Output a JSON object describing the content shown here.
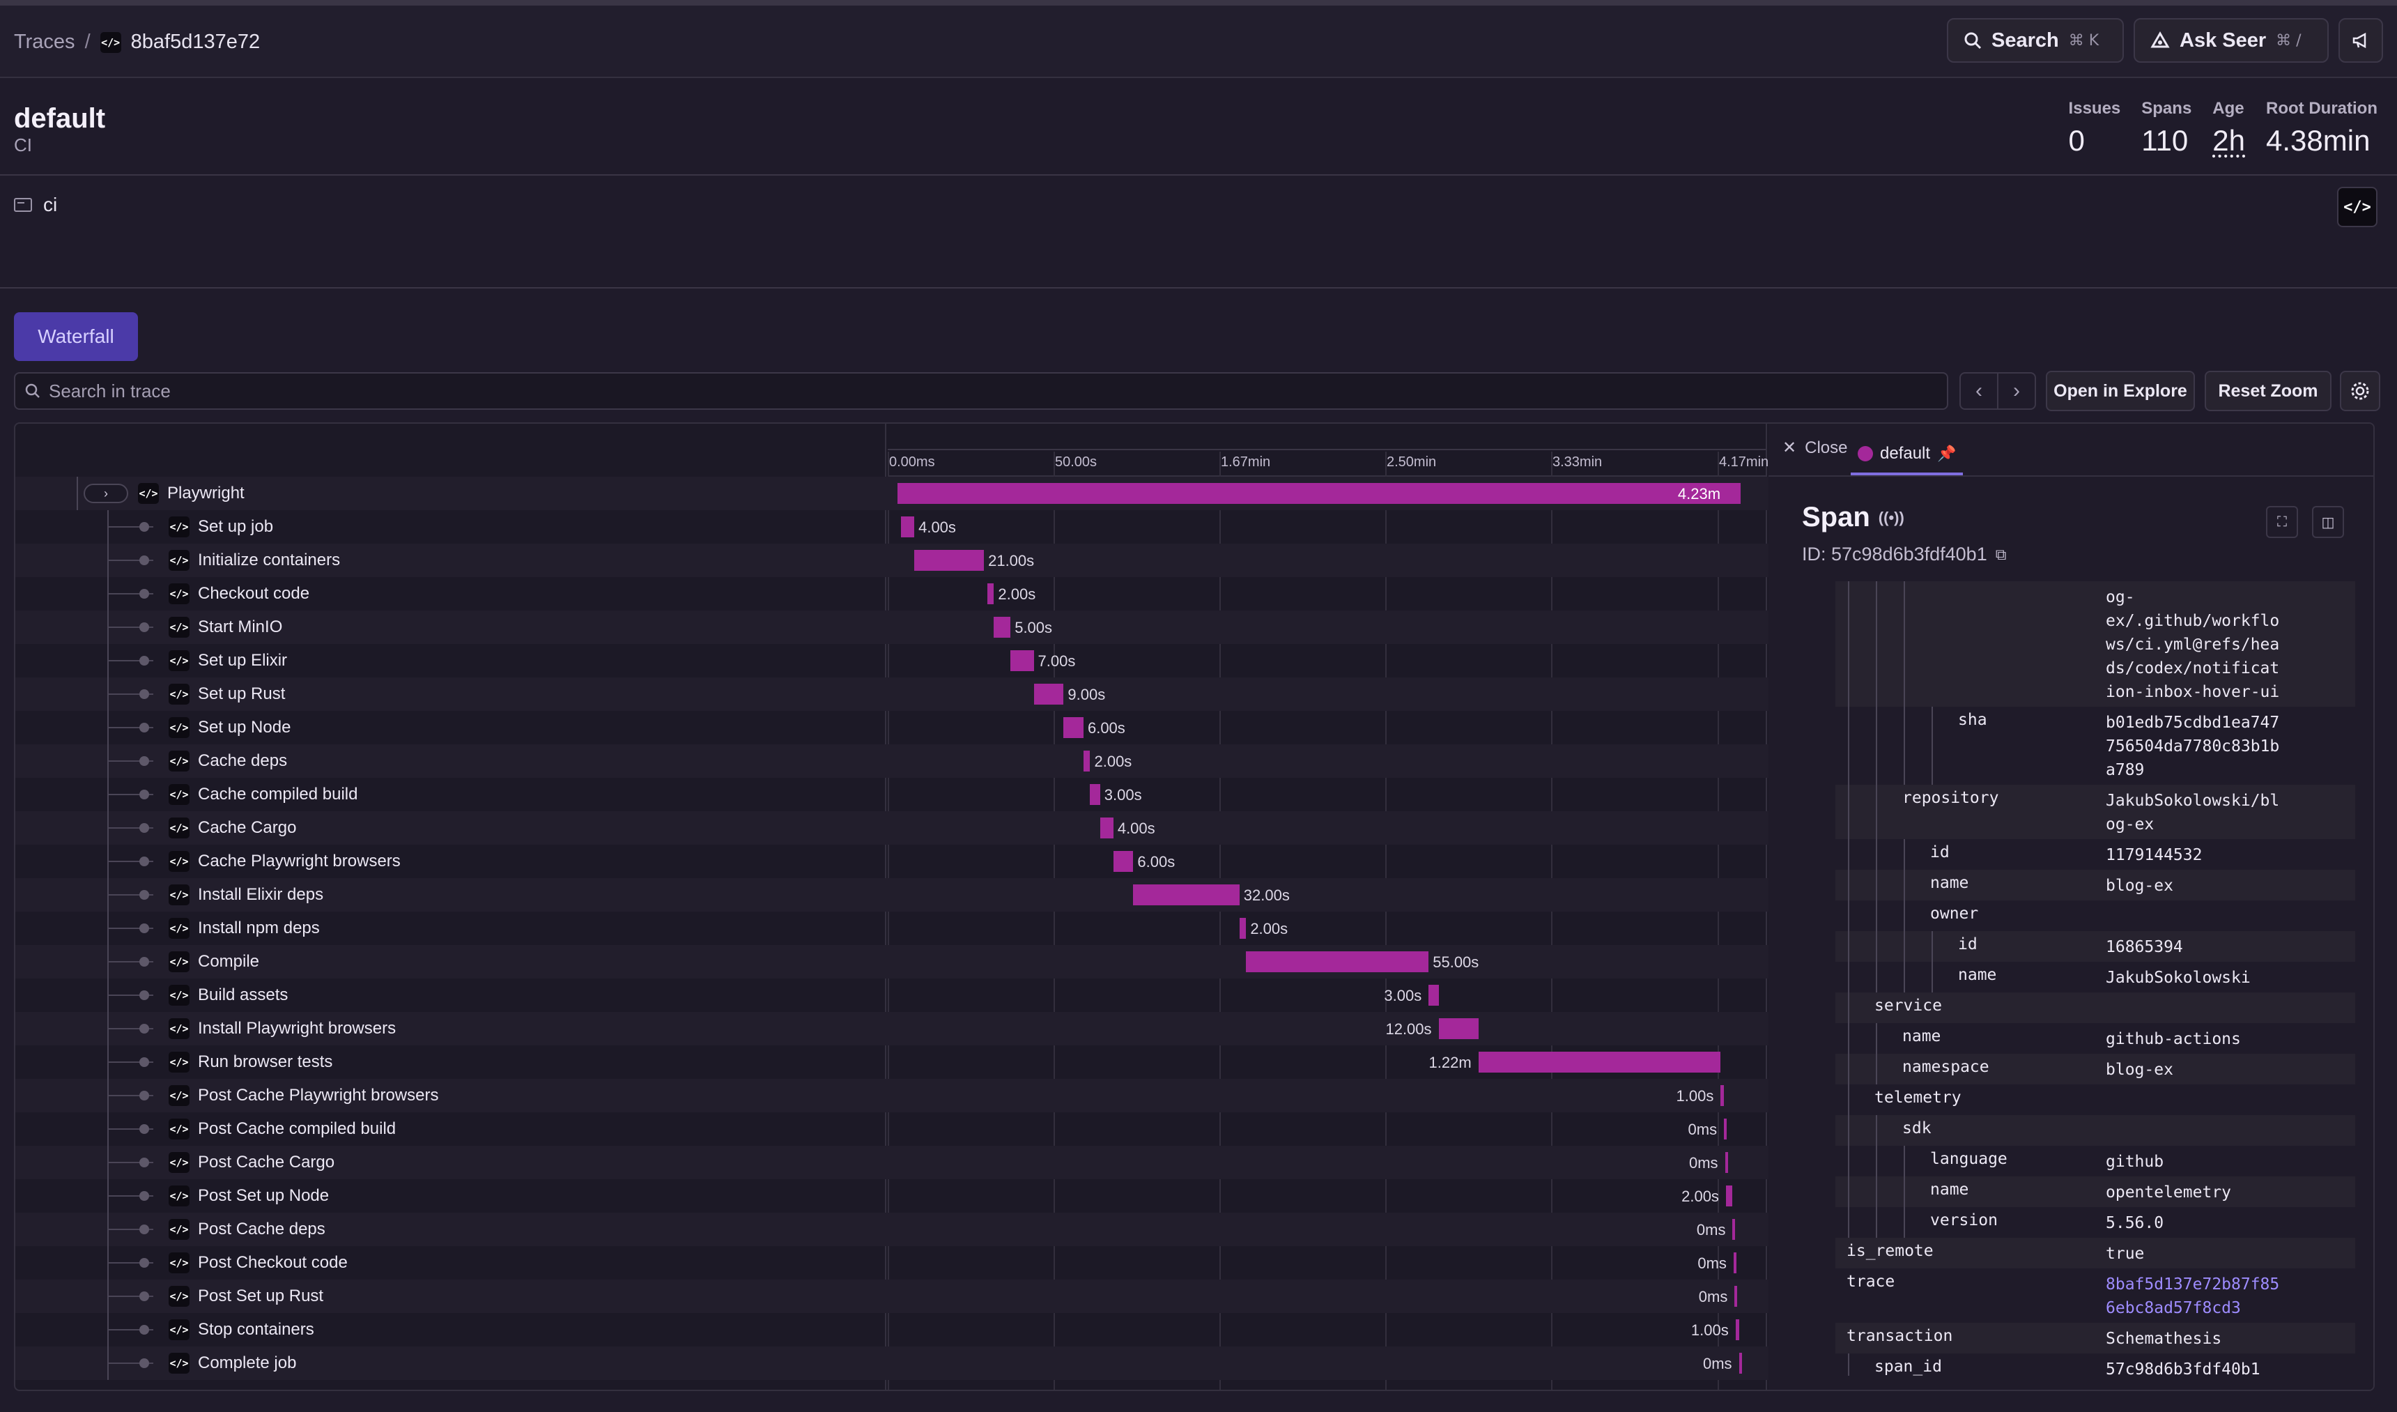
{
  "header": {
    "breadcrumb_root": "Traces",
    "breadcrumb_sep": "/",
    "trace_short_id": "8baf5d137e72",
    "search_label": "Search",
    "search_kbd": "⌘ K",
    "ask_label": "Ask Seer",
    "ask_kbd": "⌘ /"
  },
  "project": {
    "title": "default",
    "subtitle": "CI",
    "tag": "ci",
    "stats": [
      {
        "label": "Issues",
        "value": "0"
      },
      {
        "label": "Spans",
        "value": "110"
      },
      {
        "label": "Age",
        "value": "2h"
      },
      {
        "label": "Root Duration",
        "value": "4.38min"
      }
    ]
  },
  "toolbar": {
    "tab": "Waterfall",
    "search_placeholder": "Search in trace",
    "open_explore": "Open in Explore",
    "reset_zoom": "Reset Zoom"
  },
  "timeline": {
    "ticks": [
      "0.00ms",
      "50.00s",
      "1.67min",
      "2.50min",
      "3.33min",
      "4.17min"
    ],
    "total_seconds": 265,
    "spans": [
      {
        "name": "Playwright",
        "start": 3,
        "dur": 254,
        "label": "4.23m",
        "parent": true
      },
      {
        "name": "Set up job",
        "start": 4,
        "dur": 4,
        "label": "4.00s"
      },
      {
        "name": "Initialize containers",
        "start": 8,
        "dur": 21,
        "label": "21.00s"
      },
      {
        "name": "Checkout code",
        "start": 30,
        "dur": 2,
        "label": "2.00s"
      },
      {
        "name": "Start MinIO",
        "start": 32,
        "dur": 5,
        "label": "5.00s"
      },
      {
        "name": "Set up Elixir",
        "start": 37,
        "dur": 7,
        "label": "7.00s"
      },
      {
        "name": "Set up Rust",
        "start": 44,
        "dur": 9,
        "label": "9.00s"
      },
      {
        "name": "Set up Node",
        "start": 53,
        "dur": 6,
        "label": "6.00s"
      },
      {
        "name": "Cache deps",
        "start": 59,
        "dur": 2,
        "label": "2.00s"
      },
      {
        "name": "Cache compiled build",
        "start": 61,
        "dur": 3,
        "label": "3.00s"
      },
      {
        "name": "Cache Cargo",
        "start": 64,
        "dur": 4,
        "label": "4.00s"
      },
      {
        "name": "Cache Playwright browsers",
        "start": 68,
        "dur": 6,
        "label": "6.00s"
      },
      {
        "name": "Install Elixir deps",
        "start": 74,
        "dur": 32,
        "label": "32.00s"
      },
      {
        "name": "Install npm deps",
        "start": 106,
        "dur": 2,
        "label": "2.00s"
      },
      {
        "name": "Compile",
        "start": 108,
        "dur": 55,
        "label": "55.00s"
      },
      {
        "name": "Build assets",
        "start": 163,
        "dur": 3,
        "label": "3.00s",
        "left": true
      },
      {
        "name": "Install Playwright browsers",
        "start": 166,
        "dur": 12,
        "label": "12.00s",
        "left": true
      },
      {
        "name": "Run browser tests",
        "start": 178,
        "dur": 73,
        "label": "1.22m",
        "left": true
      },
      {
        "name": "Post Cache Playwright browsers",
        "start": 251,
        "dur": 1,
        "label": "1.00s",
        "left": true
      },
      {
        "name": "Post Cache compiled build",
        "start": 252,
        "dur": 0.3,
        "label": "0ms",
        "left": true
      },
      {
        "name": "Post Cache Cargo",
        "start": 252.3,
        "dur": 0.3,
        "label": "0ms",
        "left": true
      },
      {
        "name": "Post Set up Node",
        "start": 252.6,
        "dur": 2,
        "label": "2.00s",
        "left": true
      },
      {
        "name": "Post Cache deps",
        "start": 254.6,
        "dur": 0.3,
        "label": "0ms",
        "left": true
      },
      {
        "name": "Post Checkout code",
        "start": 254.9,
        "dur": 0.3,
        "label": "0ms",
        "left": true
      },
      {
        "name": "Post Set up Rust",
        "start": 255.2,
        "dur": 0.3,
        "label": "0ms",
        "left": true
      },
      {
        "name": "Stop containers",
        "start": 255.5,
        "dur": 1,
        "label": "1.00s",
        "left": true
      },
      {
        "name": "Complete job",
        "start": 256.5,
        "dur": 0.3,
        "label": "0ms",
        "left": true
      }
    ]
  },
  "details": {
    "close_label": "Close",
    "tab_label": "default",
    "span_title": "Span",
    "span_id_label": "ID: 57c98d6b3fdf40b1",
    "attributes": [
      {
        "key": "",
        "value": "og-\nex/.github/workflo\nws/ci.yml@refs/hea\nds/codex/notificat\nion-inbox-hover-ui",
        "depth": 3,
        "lines": 5
      },
      {
        "key": "sha",
        "value": "b01edb75cdbd1ea747\n756504da7780c83b1b\na789",
        "depth": 4,
        "lines": 3
      },
      {
        "key": "repository",
        "value": "JakubSokolowski/bl\nog-ex",
        "depth": 2,
        "lines": 2
      },
      {
        "key": "id",
        "value": "1179144532",
        "depth": 3,
        "lines": 1
      },
      {
        "key": "name",
        "value": "blog-ex",
        "depth": 3,
        "lines": 1
      },
      {
        "key": "owner",
        "value": "",
        "depth": 3,
        "lines": 1
      },
      {
        "key": "id",
        "value": "16865394",
        "depth": 4,
        "lines": 1
      },
      {
        "key": "name",
        "value": "JakubSokolowski",
        "depth": 4,
        "lines": 1
      },
      {
        "key": "service",
        "value": "",
        "depth": 1,
        "lines": 1
      },
      {
        "key": "name",
        "value": "github-actions",
        "depth": 2,
        "lines": 1
      },
      {
        "key": "namespace",
        "value": "blog-ex",
        "depth": 2,
        "lines": 1
      },
      {
        "key": "telemetry",
        "value": "",
        "depth": 1,
        "lines": 1
      },
      {
        "key": "sdk",
        "value": "",
        "depth": 2,
        "lines": 1
      },
      {
        "key": "language",
        "value": "github",
        "depth": 3,
        "lines": 1
      },
      {
        "key": "name",
        "value": "opentelemetry",
        "depth": 3,
        "lines": 1
      },
      {
        "key": "version",
        "value": "5.56.0",
        "depth": 3,
        "lines": 1
      },
      {
        "key": "is_remote",
        "value": "true",
        "depth": 0,
        "lines": 1
      },
      {
        "key": "trace",
        "value": "8baf5d137e72b87f85\n6ebc8ad57f8cd3",
        "depth": 0,
        "lines": 2,
        "link": true
      },
      {
        "key": "transaction",
        "value": "Schemathesis",
        "depth": 0,
        "lines": 1
      },
      {
        "key": "span_id",
        "value": "57c98d6b3fdf40b1",
        "depth": 1,
        "lines": 1
      }
    ]
  },
  "colors": {
    "span_bar": "#a4289a",
    "accent": "#4b3aa8"
  }
}
